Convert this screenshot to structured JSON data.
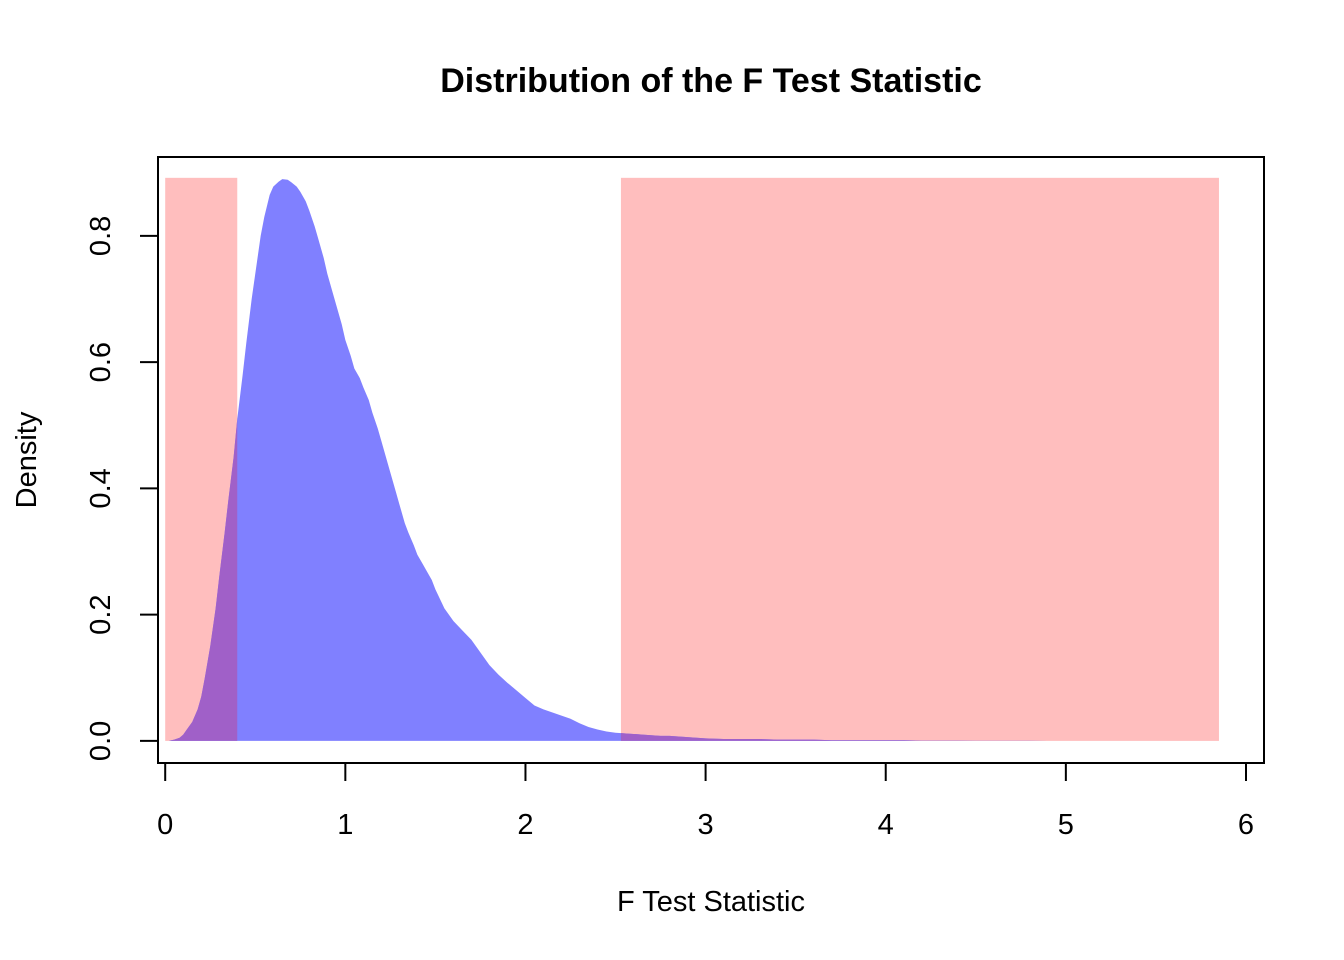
{
  "chart_data": {
    "type": "area",
    "title": "Distribution of the F Test Statistic",
    "xlabel": "F Test Statistic",
    "ylabel": "Density",
    "xlim": [
      -0.04,
      6.1
    ],
    "ylim": [
      -0.035,
      0.925
    ],
    "x_ticks": [
      0,
      1,
      2,
      3,
      4,
      5,
      6
    ],
    "x_tick_labels": [
      "0",
      "1",
      "2",
      "3",
      "4",
      "5",
      "6"
    ],
    "y_ticks": [
      0.0,
      0.2,
      0.4,
      0.6,
      0.8
    ],
    "y_tick_labels": [
      "0.0",
      "0.2",
      "0.4",
      "0.6",
      "0.8"
    ],
    "grid": false,
    "legend": "none",
    "rejection_regions": [
      {
        "x_start": 0.0,
        "x_end": 0.4,
        "y_top": 0.892
      },
      {
        "x_start": 2.53,
        "x_end": 5.85,
        "y_top": 0.892
      }
    ],
    "density": {
      "x": [
        0.02,
        0.05,
        0.08,
        0.1,
        0.12,
        0.15,
        0.18,
        0.2,
        0.22,
        0.25,
        0.28,
        0.3,
        0.33,
        0.35,
        0.38,
        0.4,
        0.43,
        0.45,
        0.48,
        0.5,
        0.53,
        0.55,
        0.58,
        0.6,
        0.63,
        0.65,
        0.68,
        0.7,
        0.73,
        0.75,
        0.78,
        0.8,
        0.83,
        0.85,
        0.88,
        0.9,
        0.93,
        0.95,
        0.98,
        1.0,
        1.03,
        1.05,
        1.08,
        1.1,
        1.13,
        1.15,
        1.18,
        1.2,
        1.23,
        1.25,
        1.28,
        1.3,
        1.33,
        1.35,
        1.38,
        1.4,
        1.43,
        1.45,
        1.48,
        1.5,
        1.55,
        1.6,
        1.65,
        1.7,
        1.75,
        1.8,
        1.85,
        1.9,
        1.95,
        2.0,
        2.05,
        2.1,
        2.15,
        2.2,
        2.25,
        2.3,
        2.35,
        2.4,
        2.45,
        2.5,
        2.55,
        2.6,
        2.65,
        2.7,
        2.75,
        2.8,
        2.85,
        2.9,
        2.95,
        3.0,
        3.1,
        3.2,
        3.3,
        3.4,
        3.5,
        3.6,
        3.7,
        3.8,
        3.9,
        4.0,
        4.1,
        4.2,
        4.3,
        4.4,
        4.5,
        4.6,
        4.7,
        4.8,
        4.9,
        5.0
      ],
      "y": [
        0.0,
        0.002,
        0.005,
        0.01,
        0.018,
        0.03,
        0.05,
        0.07,
        0.1,
        0.15,
        0.21,
        0.26,
        0.33,
        0.38,
        0.45,
        0.51,
        0.58,
        0.63,
        0.7,
        0.74,
        0.8,
        0.83,
        0.865,
        0.878,
        0.886,
        0.89,
        0.889,
        0.885,
        0.878,
        0.87,
        0.855,
        0.84,
        0.815,
        0.795,
        0.765,
        0.74,
        0.71,
        0.69,
        0.66,
        0.635,
        0.61,
        0.59,
        0.575,
        0.56,
        0.54,
        0.52,
        0.495,
        0.475,
        0.445,
        0.425,
        0.395,
        0.375,
        0.345,
        0.33,
        0.31,
        0.295,
        0.28,
        0.27,
        0.255,
        0.24,
        0.21,
        0.19,
        0.175,
        0.16,
        0.14,
        0.12,
        0.105,
        0.092,
        0.08,
        0.068,
        0.056,
        0.05,
        0.045,
        0.04,
        0.035,
        0.028,
        0.022,
        0.018,
        0.015,
        0.013,
        0.012,
        0.011,
        0.01,
        0.009,
        0.008,
        0.008,
        0.007,
        0.006,
        0.005,
        0.004,
        0.003,
        0.003,
        0.003,
        0.002,
        0.002,
        0.002,
        0.001,
        0.001,
        0.001,
        0.001,
        0.001,
        0.0005,
        0.0005,
        0.0005,
        0.0003,
        0.0003,
        0.0002,
        0.0002,
        0.0001,
        0.0
      ]
    }
  },
  "colors": {
    "density_fill": "#8080ff",
    "rejection_fill": "#ffbebe",
    "overlap_fill": "#a060c8",
    "axis": "#000000",
    "background": "#ffffff"
  }
}
